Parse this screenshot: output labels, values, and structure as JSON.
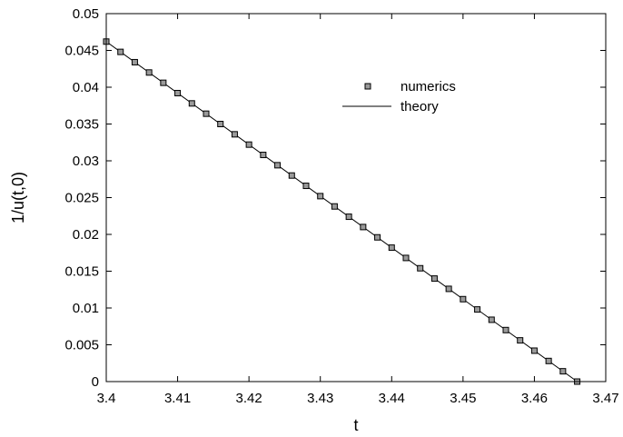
{
  "chart_data": {
    "type": "scatter",
    "xlabel": "t",
    "ylabel": "1/u(t,0)",
    "xlim": [
      3.4,
      3.47
    ],
    "ylim": [
      0,
      0.05
    ],
    "xticks": [
      "3.4",
      "3.41",
      "3.42",
      "3.43",
      "3.44",
      "3.45",
      "3.46",
      "3.47"
    ],
    "yticks": [
      "0",
      "0.005",
      "0.01",
      "0.015",
      "0.02",
      "0.025",
      "0.03",
      "0.035",
      "0.04",
      "0.045",
      "0.05"
    ],
    "grid": false,
    "legend_position": "upper-right",
    "series": [
      {
        "name": "numerics",
        "kind": "markers",
        "marker": "open-square",
        "x": [
          3.4,
          3.402,
          3.404,
          3.406,
          3.408,
          3.41,
          3.412,
          3.414,
          3.416,
          3.418,
          3.42,
          3.422,
          3.424,
          3.426,
          3.428,
          3.43,
          3.432,
          3.434,
          3.436,
          3.438,
          3.44,
          3.442,
          3.444,
          3.446,
          3.448,
          3.45,
          3.452,
          3.454,
          3.456,
          3.458,
          3.46,
          3.462,
          3.464,
          3.466
        ],
        "y": [
          0.0462,
          0.0448,
          0.0434,
          0.042,
          0.0406,
          0.0392,
          0.0378,
          0.0364,
          0.035,
          0.0336,
          0.0322,
          0.0308,
          0.0294,
          0.028,
          0.0266,
          0.0252,
          0.0238,
          0.0224,
          0.021,
          0.0196,
          0.0182,
          0.0168,
          0.0154,
          0.014,
          0.0126,
          0.0112,
          0.0098,
          0.0084,
          0.007,
          0.0056,
          0.0042,
          0.0028,
          0.0014,
          0.0
        ]
      },
      {
        "name": "theory",
        "kind": "line",
        "x": [
          3.4,
          3.466
        ],
        "y": [
          0.0462,
          0.0
        ]
      }
    ]
  },
  "colors": {
    "axis": "#000000",
    "marker_fill": "#9a9a9a",
    "line": "#000000"
  }
}
